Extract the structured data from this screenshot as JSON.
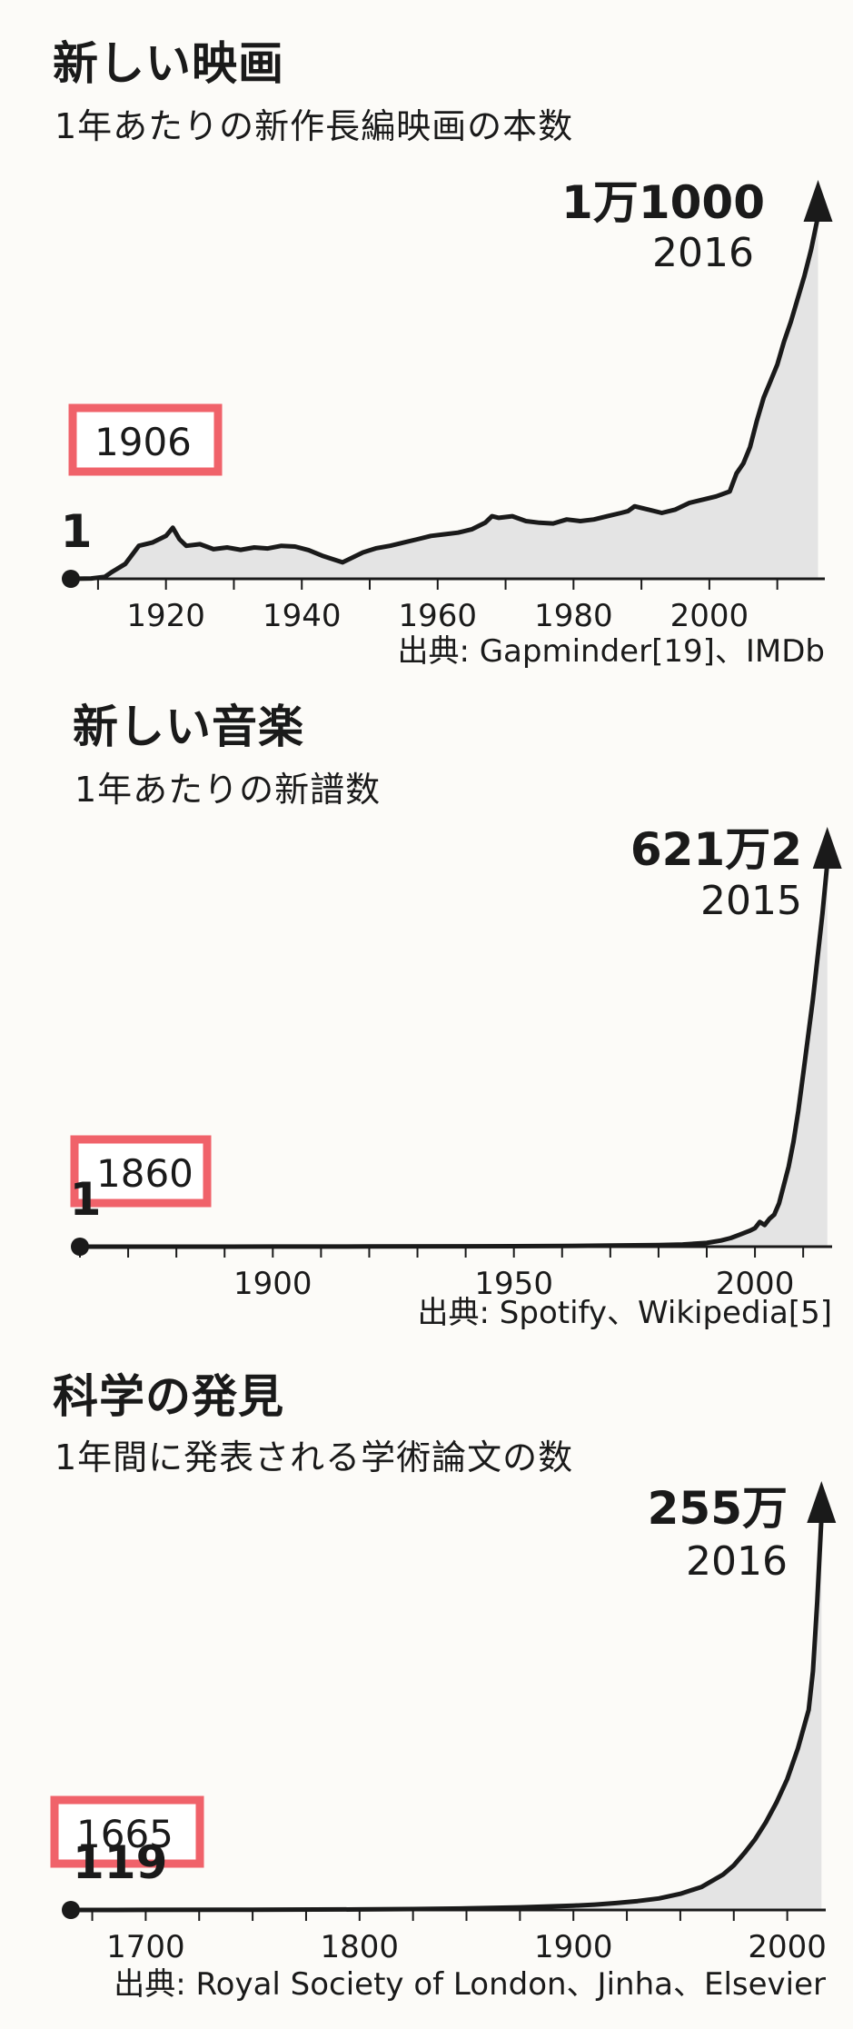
{
  "chart_data": [
    {
      "type": "area",
      "title": "新しい映画",
      "subtitle": "1年あたりの新作長編映画の本数",
      "x_ticks": [
        1920,
        1940,
        1960,
        1980,
        2000
      ],
      "xlim": [
        1906,
        2017
      ],
      "x_minor_step": 10,
      "start_label": "1",
      "start_year_label": "1906",
      "peak_label": "1万1000",
      "peak_year_label": "2016",
      "source": "出典: Gapminder[19]、IMDb",
      "colors": {
        "line": "#1a1a1a",
        "area": "#e4e4e4",
        "highlight": "#f0626a"
      },
      "series": [
        {
          "x": [
            1906,
            1909,
            1911,
            1912,
            1914,
            1916,
            1918,
            1920,
            1921,
            1922,
            1923,
            1925,
            1927,
            1929,
            1931,
            1933,
            1935,
            1937,
            1939,
            1941,
            1943,
            1946,
            1949,
            1951,
            1953,
            1955,
            1957,
            1959,
            1961,
            1963,
            1965,
            1967,
            1968,
            1969,
            1971,
            1973,
            1975,
            1977,
            1979,
            1981,
            1983,
            1985,
            1987,
            1988,
            1989,
            1991,
            1993,
            1995,
            1997,
            1999,
            2001,
            2003,
            2004,
            2005,
            2006,
            2007,
            2008,
            2009,
            2010,
            2011,
            2012,
            2013,
            2014,
            2015,
            2016
          ],
          "y": [
            1,
            10,
            60,
            200,
            450,
            1000,
            1100,
            1300,
            1550,
            1200,
            1000,
            1050,
            900,
            950,
            880,
            950,
            920,
            1000,
            980,
            870,
            700,
            500,
            800,
            930,
            1000,
            1100,
            1200,
            1300,
            1350,
            1400,
            1500,
            1700,
            1900,
            1850,
            1900,
            1750,
            1700,
            1680,
            1800,
            1750,
            1800,
            1900,
            2000,
            2050,
            2200,
            2100,
            2000,
            2100,
            2300,
            2400,
            2500,
            2650,
            3200,
            3500,
            4000,
            4800,
            5500,
            6000,
            6500,
            7200,
            7800,
            8500,
            9200,
            10000,
            11000
          ]
        }
      ]
    },
    {
      "type": "area",
      "title": "新しい音楽",
      "subtitle": "1年あたりの新譜数",
      "x_ticks": [
        1900,
        1950,
        2000
      ],
      "xlim": [
        1860,
        2016
      ],
      "x_minor_step": 10,
      "start_label": "1",
      "start_year_label": "1860",
      "peak_label": "621万2",
      "peak_year_label": "2015",
      "source": "出典: Spotify、Wikipedia[5]",
      "colors": {
        "line": "#1a1a1a",
        "area": "#e4e4e4",
        "highlight": "#f0626a"
      },
      "series": [
        {
          "x": [
            1860,
            1880,
            1900,
            1920,
            1940,
            1950,
            1960,
            1970,
            1975,
            1980,
            1985,
            1990,
            1993,
            1995,
            1997,
            1999,
            2000,
            2001,
            2002,
            2003,
            2004,
            2005,
            2006,
            2007,
            2008,
            2009,
            2010,
            2011,
            2012,
            2013,
            2014,
            2015
          ],
          "y": [
            1,
            500,
            1500,
            3000,
            6000,
            8000,
            12000,
            18000,
            22000,
            27000,
            35000,
            60000,
            100000,
            140000,
            200000,
            260000,
            300000,
            400000,
            350000,
            450000,
            520000,
            700000,
            1000000,
            1300000,
            1700000,
            2200000,
            2800000,
            3400000,
            4000000,
            4700000,
            5400000,
            6212000
          ]
        }
      ]
    },
    {
      "type": "area",
      "title": "科学の発見",
      "subtitle": "1年間に発表される学術論文の数",
      "x_ticks": [
        1700,
        1800,
        1900,
        2000
      ],
      "xlim": [
        1665,
        2018
      ],
      "x_minor_step": 25,
      "start_label": "119",
      "start_year_label": "1665",
      "peak_label": "255万",
      "peak_year_label": "2016",
      "source": "出典: Royal Society of London、Jinha、Elsevier",
      "colors": {
        "line": "#1a1a1a",
        "area": "#e4e4e4",
        "highlight": "#f0626a"
      },
      "series": [
        {
          "x": [
            1665,
            1700,
            1750,
            1800,
            1825,
            1850,
            1875,
            1900,
            1910,
            1920,
            1930,
            1940,
            1950,
            1960,
            1970,
            1975,
            1980,
            1985,
            1990,
            1995,
            2000,
            2005,
            2010,
            2012,
            2014,
            2016
          ],
          "y": [
            119,
            500,
            1500,
            3500,
            6000,
            10000,
            17000,
            28000,
            35000,
            45000,
            58000,
            75000,
            105000,
            150000,
            230000,
            290000,
            370000,
            460000,
            570000,
            700000,
            850000,
            1050000,
            1300000,
            1550000,
            2000000,
            2550000
          ]
        }
      ]
    }
  ]
}
